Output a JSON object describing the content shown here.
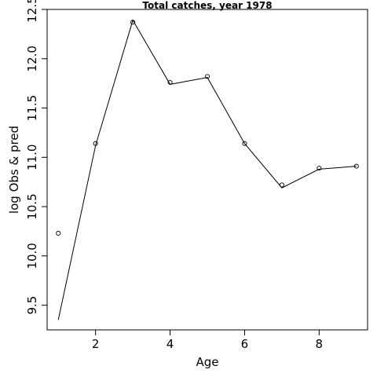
{
  "chart_data": {
    "type": "line",
    "title": "Total catches, year 1978",
    "xlabel": "Age",
    "ylabel": "log Obs & pred",
    "xlim": [
      0.7,
      9.3
    ],
    "ylim": [
      9.25,
      12.5
    ],
    "x_ticks": [
      2,
      4,
      6,
      8
    ],
    "x_tick_labels": [
      "2",
      "4",
      "6",
      "8"
    ],
    "y_ticks": [
      9.5,
      10.0,
      10.5,
      11.0,
      11.5,
      12.0,
      12.5
    ],
    "y_tick_labels": [
      "9.5",
      "10.0",
      "10.5",
      "11.0",
      "11.5",
      "12.0",
      "12.5"
    ],
    "grid": false,
    "series": [
      {
        "name": "",
        "style": "points",
        "x": [
          1,
          2,
          3,
          4,
          5,
          6,
          7,
          8,
          9
        ],
        "y": [
          10.23,
          11.14,
          12.37,
          11.76,
          11.82,
          11.14,
          10.72,
          10.89,
          10.91
        ]
      },
      {
        "name": "",
        "style": "line",
        "x": [
          1,
          2,
          3,
          4,
          5,
          6,
          7,
          8,
          9
        ],
        "y": [
          9.35,
          11.12,
          12.39,
          11.74,
          11.81,
          11.14,
          10.69,
          10.88,
          10.91
        ]
      }
    ]
  }
}
